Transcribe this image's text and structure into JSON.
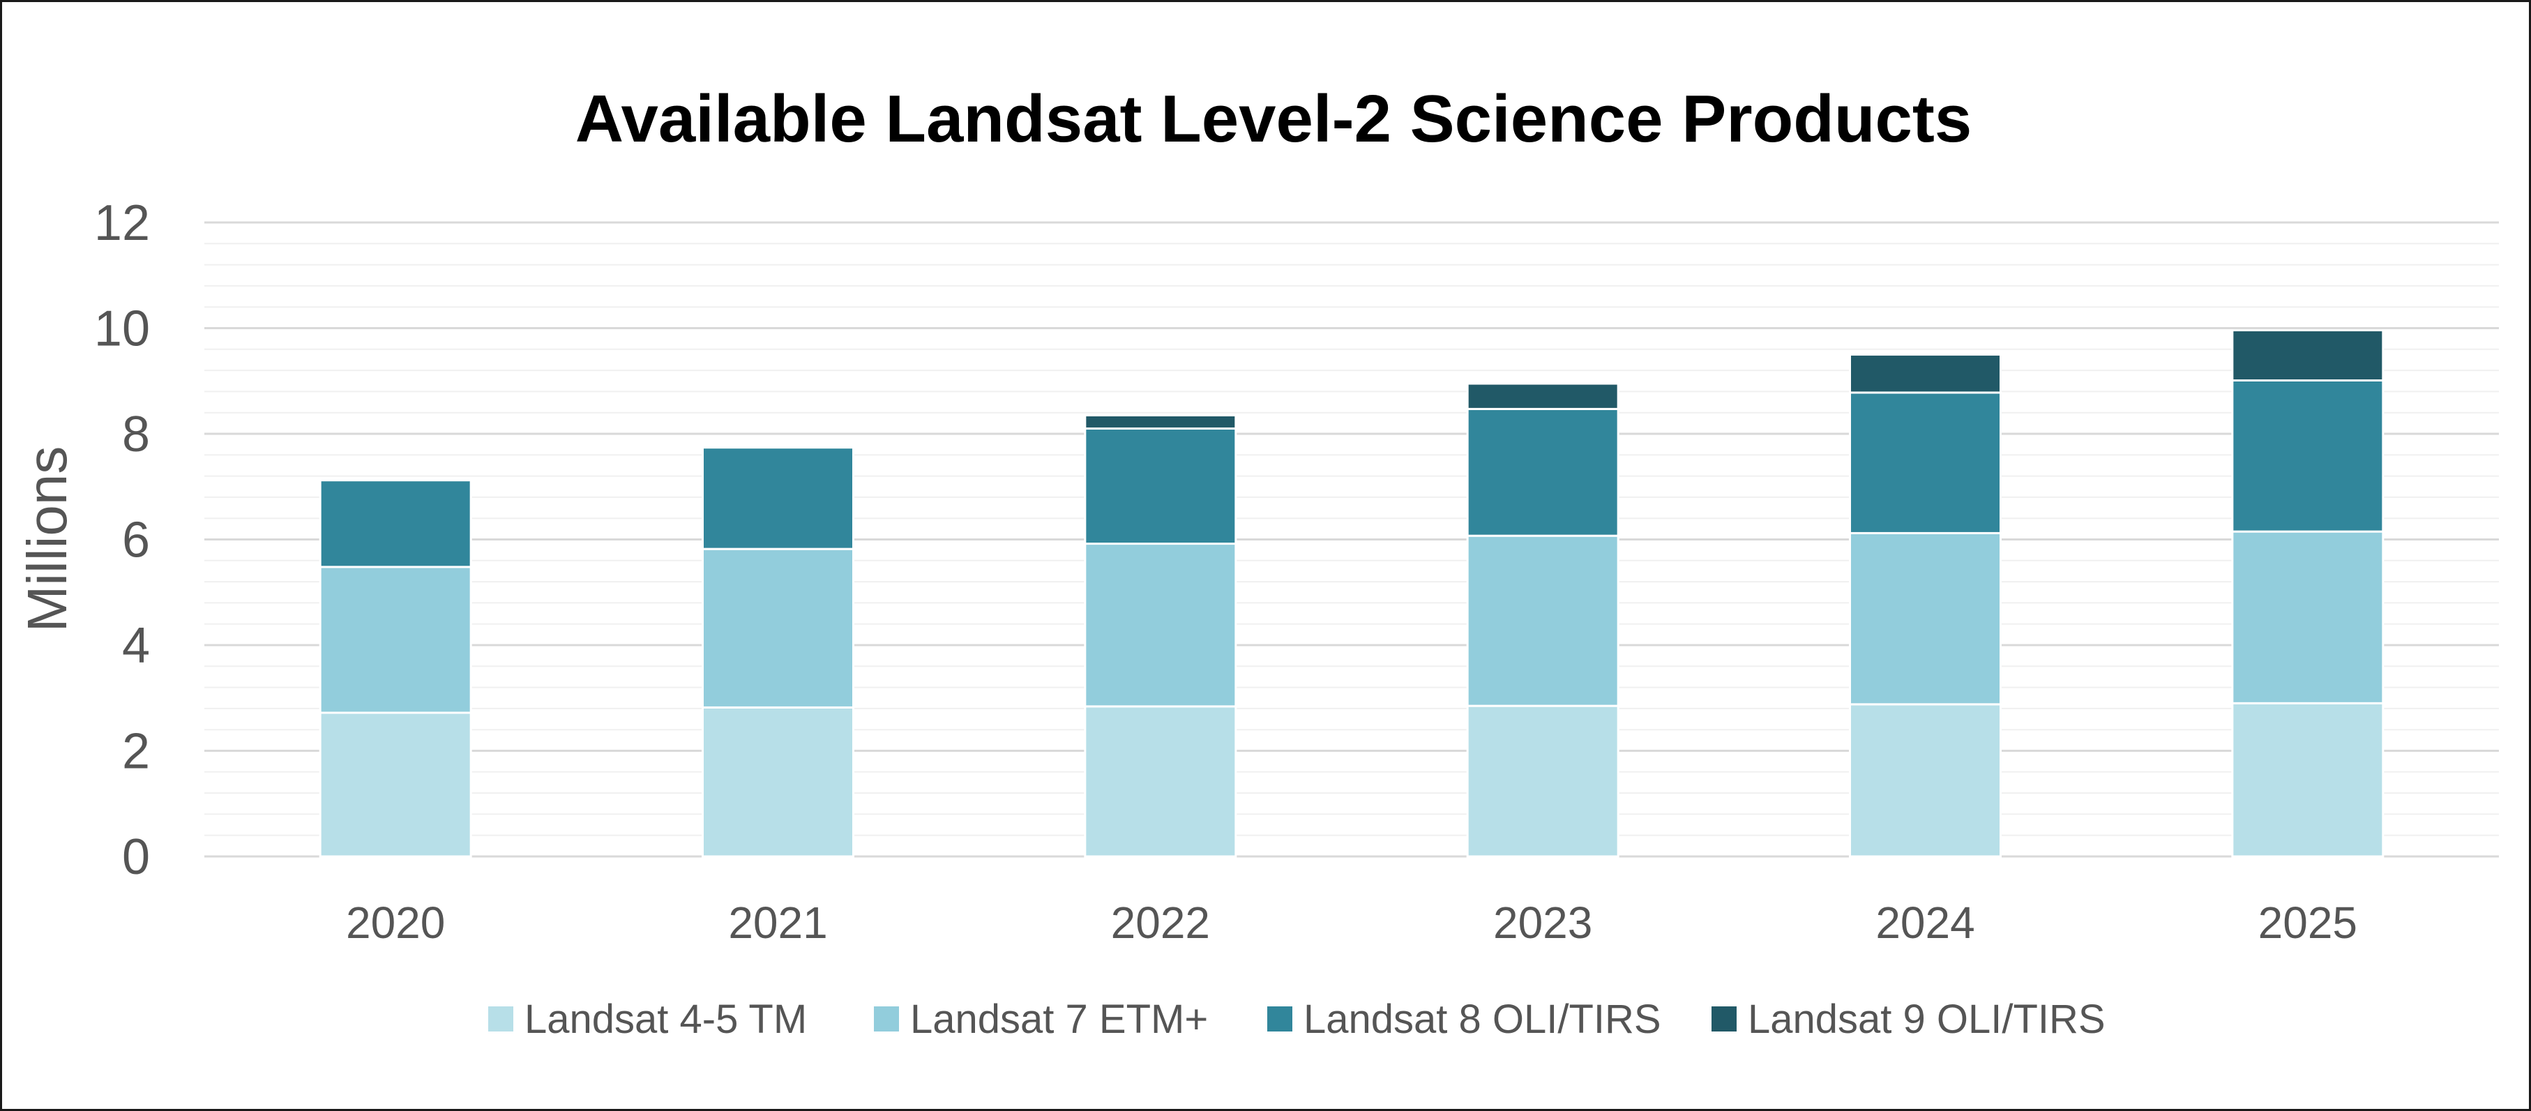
{
  "chart_data": {
    "type": "bar",
    "stacked": true,
    "title": "Available Landsat Level-2 Science Products",
    "xlabel": "",
    "ylabel": "Millions",
    "ylim": [
      0,
      12
    ],
    "yticks": [
      "0",
      "2",
      "4",
      "6",
      "8",
      "10",
      "12"
    ],
    "grid": true,
    "legend_position": "bottom",
    "categories": [
      "2020",
      "2021",
      "2022",
      "2023",
      "2024",
      "2025"
    ],
    "series": [
      {
        "name": "Landsat 4-5 TM",
        "color": "#b7dfe8",
        "values": [
          2.72,
          2.82,
          2.84,
          2.85,
          2.88,
          2.9
        ]
      },
      {
        "name": "Landsat 7 ETM+",
        "color": "#92cddc",
        "values": [
          2.76,
          3.0,
          3.08,
          3.22,
          3.24,
          3.25
        ]
      },
      {
        "name": "Landsat 8 OLI/TIRS",
        "color": "#31869b",
        "values": [
          1.64,
          1.92,
          2.18,
          2.4,
          2.66,
          2.86
        ]
      },
      {
        "name": "Landsat 9 OLI/TIRS",
        "color": "#215967",
        "values": [
          0,
          0,
          0.25,
          0.48,
          0.72,
          0.95
        ]
      }
    ]
  }
}
